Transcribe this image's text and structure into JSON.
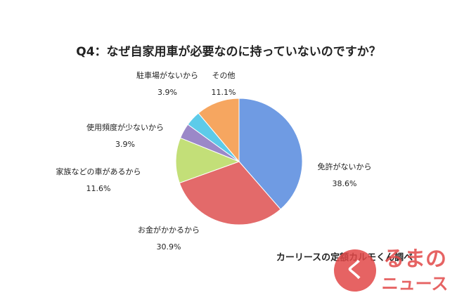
{
  "chart_data": {
    "type": "pie",
    "title": "Q4：なぜ自家用車が必要なのに持っていないのですか？",
    "categories": [
      "免許がないから",
      "お金がかかるから",
      "家族などの車があるから",
      "使用頻度が少ないから",
      "駐車場がないから",
      "その他"
    ],
    "values": [
      38.6,
      30.9,
      11.6,
      3.9,
      3.9,
      11.1
    ],
    "value_labels": [
      "38.6%",
      "30.9%",
      "11.6%",
      "3.9%",
      "3.9%",
      "11.1%"
    ],
    "colors": [
      "#6f9be3",
      "#e36a6a",
      "#c3df78",
      "#9b88c8",
      "#5dcbe9",
      "#f6a660"
    ],
    "source": "カーリースの定額カルモくん調べ"
  },
  "logo": {
    "mark": "く",
    "line1": "るまの",
    "line2": "ニュース"
  }
}
